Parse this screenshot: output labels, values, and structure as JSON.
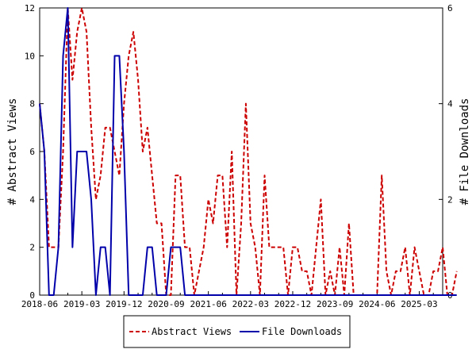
{
  "chart_data": {
    "type": "line",
    "x_tick_labels": [
      "2018-06",
      "2019-03",
      "2019-12",
      "2020-09",
      "2021-06",
      "2022-03",
      "2022-12",
      "2023-09",
      "2024-06",
      "2025-03"
    ],
    "y_left": {
      "label": "# Abstract Views",
      "ticks": [
        0,
        2,
        4,
        6,
        8,
        10,
        12
      ],
      "ylim": [
        0,
        12
      ]
    },
    "y_right": {
      "label": "# File Downloads",
      "ticks": [
        0,
        2,
        4,
        6
      ],
      "ylim": [
        0,
        6
      ]
    },
    "grid": false,
    "legend_placement": "bottom-center",
    "x_range_months": [
      0,
      86
    ],
    "series": [
      {
        "name": "Abstract Views",
        "axis": "left",
        "color": "#cc0000",
        "style": "dashed",
        "values": [
          8,
          6,
          2,
          2,
          2,
          6,
          12,
          9,
          11,
          12,
          11,
          7,
          4,
          5,
          7,
          7,
          6,
          5,
          8,
          10,
          11,
          9,
          6,
          7,
          5,
          3,
          3,
          0,
          0,
          5,
          5,
          2,
          2,
          0,
          1,
          2,
          4,
          3,
          5,
          5,
          2,
          6,
          0,
          3,
          8,
          3,
          2,
          0,
          5,
          2,
          2,
          2,
          2,
          0,
          2,
          2,
          1,
          1,
          0,
          2,
          4,
          0,
          1,
          0,
          2,
          0,
          3,
          0,
          0,
          0,
          0,
          0,
          0,
          5,
          1,
          0,
          1,
          1,
          2,
          0,
          2,
          1,
          0,
          0,
          1,
          1,
          2,
          0,
          0,
          1
        ]
      },
      {
        "name": "File Downloads",
        "axis": "right",
        "color": "#0000aa",
        "style": "solid",
        "values": [
          4,
          3,
          0,
          0,
          1,
          5,
          6,
          1,
          3,
          3,
          3,
          2,
          0,
          1,
          1,
          0,
          5,
          5,
          3,
          0,
          0,
          0,
          0,
          1,
          1,
          0,
          0,
          0,
          1,
          1,
          1,
          0,
          0,
          0,
          0,
          0,
          0,
          0,
          0,
          0,
          0,
          0,
          0,
          0,
          0,
          0,
          0,
          0,
          0,
          0,
          0,
          0,
          0,
          0,
          0,
          0,
          0,
          0,
          0,
          0,
          0,
          0,
          0,
          0,
          0,
          0,
          0,
          0,
          0,
          0,
          0,
          0,
          0,
          0,
          0,
          0,
          0,
          0,
          0,
          0,
          0,
          0,
          0,
          0,
          0,
          0,
          0,
          0,
          0,
          0
        ]
      }
    ]
  }
}
